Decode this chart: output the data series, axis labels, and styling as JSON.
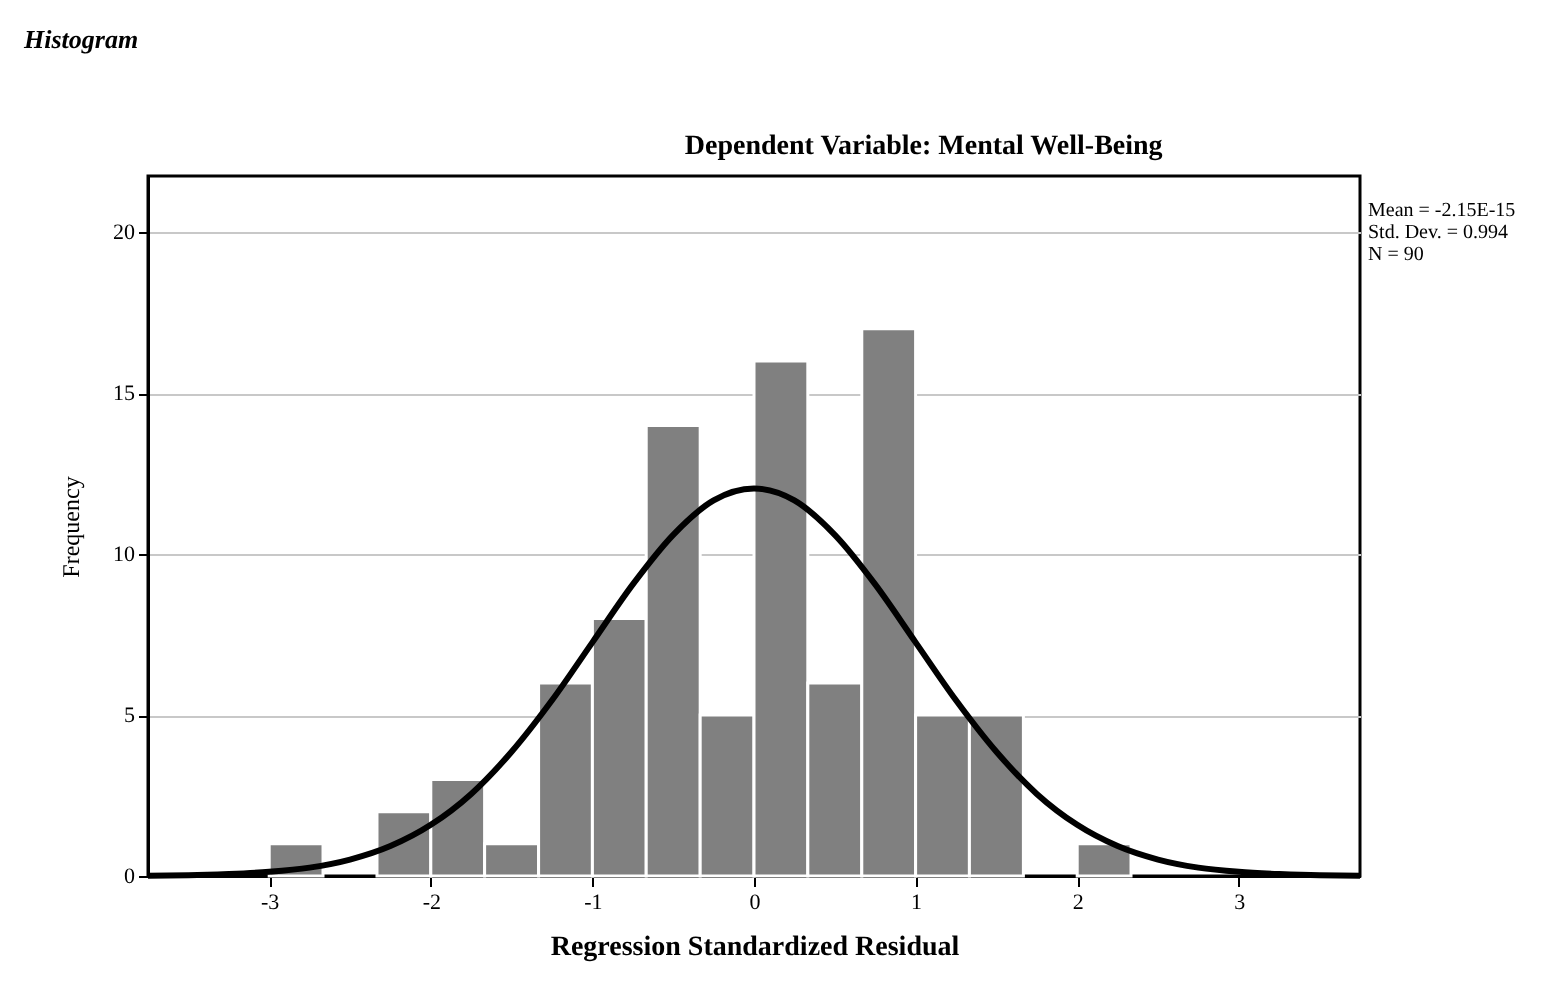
{
  "chart_data": {
    "type": "histogram",
    "title": "Histogram",
    "subtitle": "Dependent Variable: Mental Well-Being",
    "xlabel": "Regression Standardized Residual",
    "ylabel": "Frequency",
    "bins": [
      -3,
      -2.667,
      -2.333,
      -2,
      -1.667,
      -1.333,
      -1,
      -0.667,
      -0.333,
      0,
      0.333,
      0.667,
      1,
      1.333,
      1.667,
      2,
      2.333
    ],
    "values": [
      1,
      0,
      2,
      3,
      1,
      6,
      8,
      14,
      5,
      16,
      6,
      17,
      5,
      5,
      0,
      1
    ],
    "color": "#808080",
    "series": [
      {
        "type": "line",
        "color": "#000000",
        "x": [
          -3.75,
          -3.5,
          -3.25,
          -3,
          -2.75,
          -2.5,
          -2.25,
          -2,
          -1.75,
          -1.5,
          -1.25,
          -1,
          -0.75,
          -0.5,
          -0.25,
          0,
          0.25,
          0.5,
          0.75,
          1,
          1.25,
          1.5,
          1.75,
          2,
          2.25,
          2.5,
          2.75,
          3,
          3.25,
          3.5,
          3.75
        ],
        "values": [
          0.01,
          0.02,
          0.06,
          0.13,
          0.26,
          0.51,
          0.93,
          1.59,
          2.55,
          3.86,
          5.46,
          7.26,
          9.06,
          10.6,
          11.67,
          12.04,
          11.67,
          10.6,
          9.06,
          7.26,
          5.46,
          3.86,
          2.55,
          1.59,
          0.93,
          0.51,
          0.26,
          0.13,
          0.06,
          0.02,
          0.01
        ]
      }
    ],
    "xlim": [
      -3.75,
      3.75
    ],
    "xticks": [
      -3,
      -2,
      -1,
      0,
      1,
      2,
      3
    ],
    "ylim": [
      0,
      21.75
    ],
    "yticks": [
      0,
      5,
      10,
      15,
      20
    ],
    "grid": "y",
    "legend": false,
    "annotations": [
      "Mean = -2.15E-15",
      "Std. Dev. = 0.994",
      "N = 90"
    ]
  }
}
